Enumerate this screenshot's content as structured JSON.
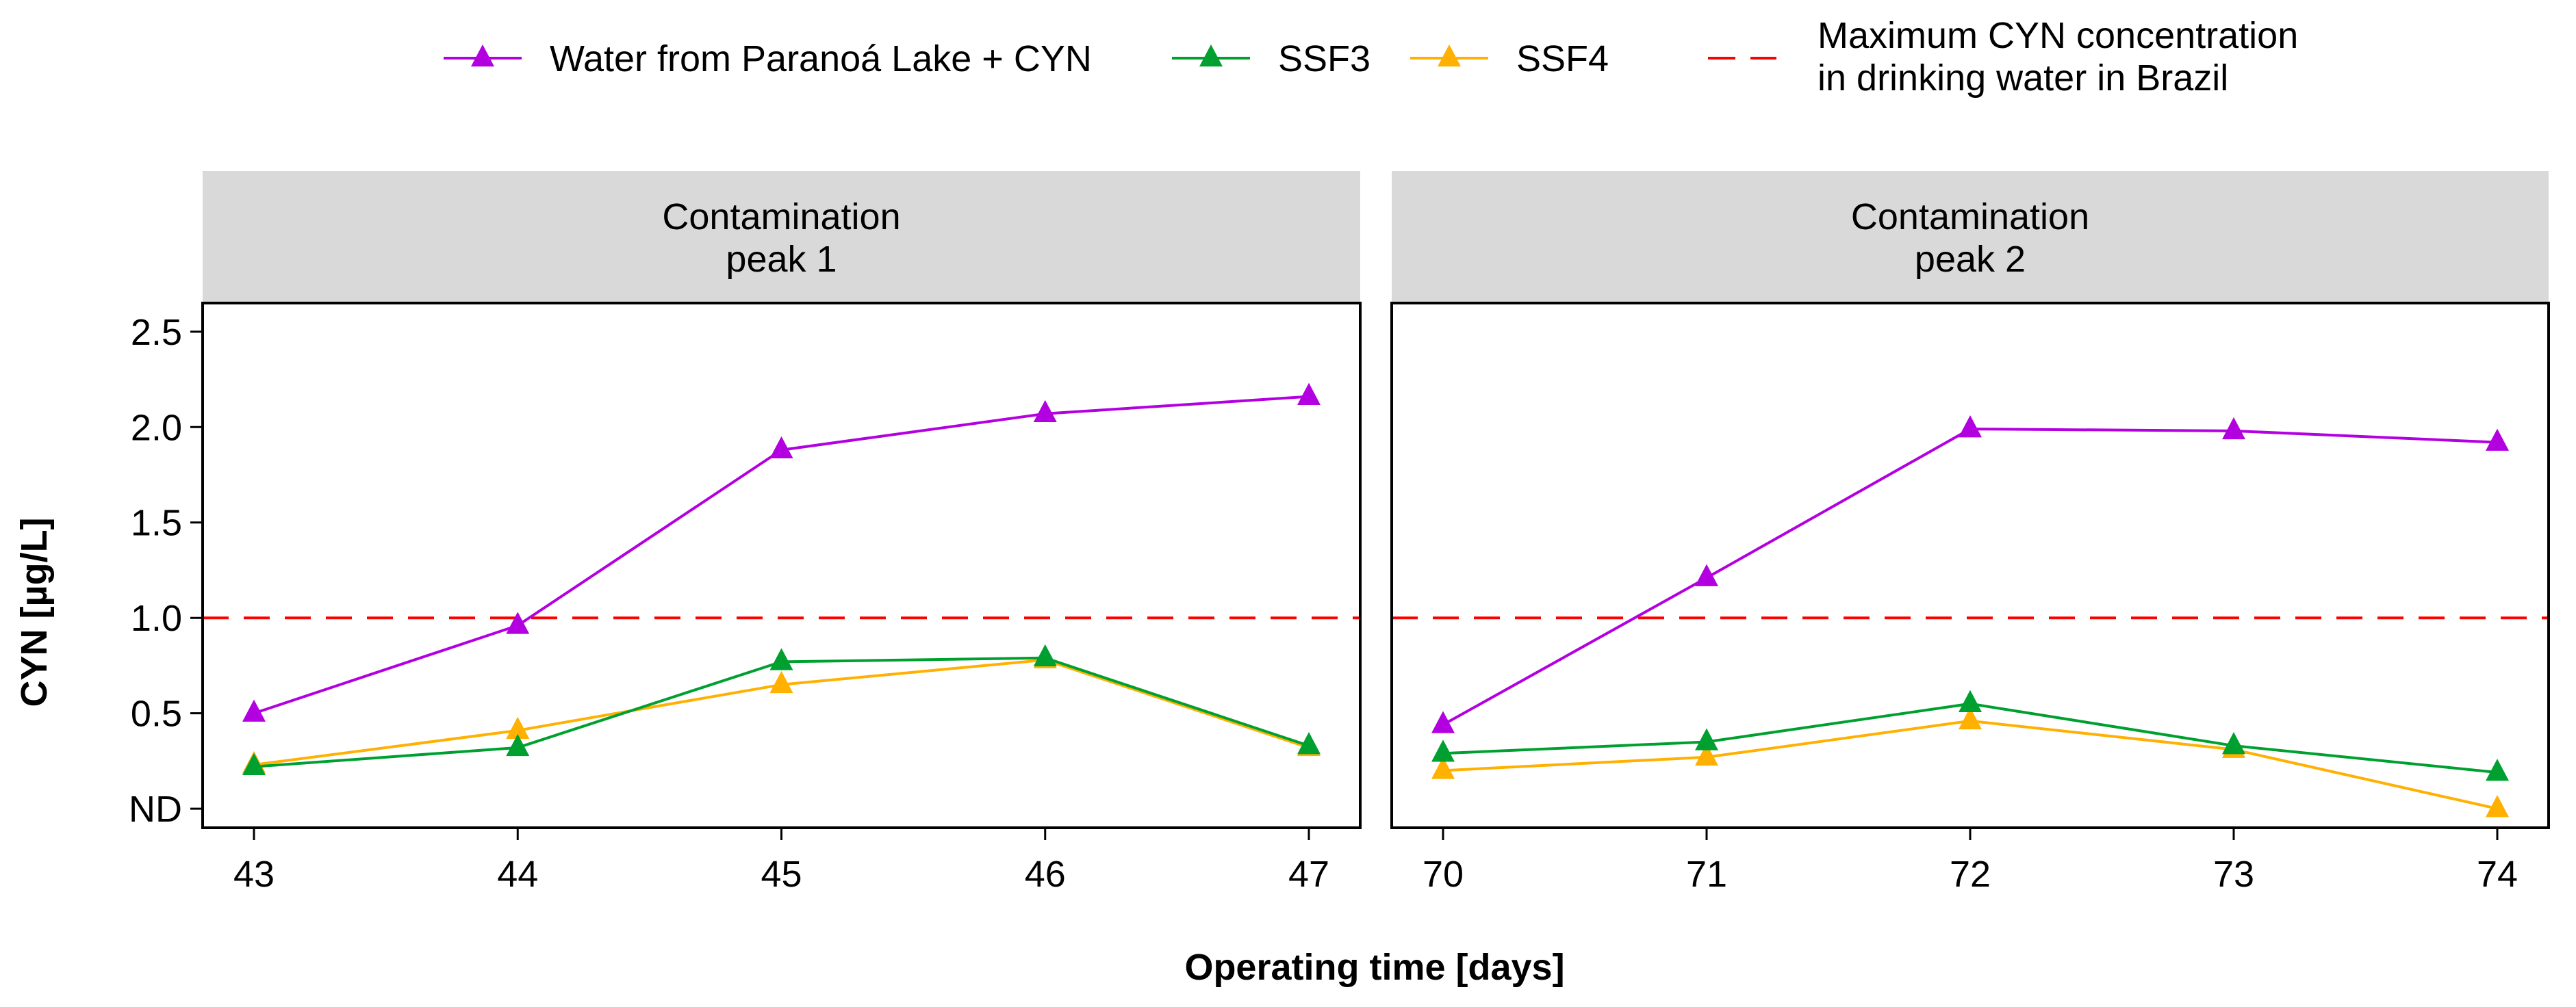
{
  "chart_data": {
    "type": "line",
    "title": "",
    "xlabel": "Operating time [days]",
    "ylabel": "CYN [µg/L]",
    "ylim": [
      -0.1,
      2.65
    ],
    "y_ticks": [
      0,
      0.5,
      1.0,
      1.5,
      2.0,
      2.5
    ],
    "y_tick_labels": [
      "ND",
      "0.5",
      "1.0",
      "1.5",
      "2.0",
      "2.5"
    ],
    "legend": {
      "position": "top",
      "entries": [
        {
          "name": "Water from Paranoá Lake + CYN",
          "color": "#B300E0",
          "marker": "triangle"
        },
        {
          "name": "SSF3",
          "color": "#00A030",
          "marker": "triangle"
        },
        {
          "name": "SSF4",
          "color": "#FFB000",
          "marker": "triangle"
        },
        {
          "name_lines": [
            "Maximum CYN concentration",
            "in drinking water in Brazil"
          ],
          "color": "#FF0000",
          "style": "dashed"
        }
      ]
    },
    "reference_line": {
      "y": 1.0,
      "color": "#FF0000",
      "style": "dashed"
    },
    "panels": [
      {
        "strip_lines": [
          "Contamination",
          "peak 1"
        ],
        "x": [
          43,
          44,
          45,
          46,
          47
        ],
        "x_tick_labels": [
          "43",
          "44",
          "45",
          "46",
          "47"
        ],
        "series": [
          {
            "name": "Water from Paranoá Lake + CYN",
            "color": "#B300E0",
            "values": [
              0.5,
              0.96,
              1.88,
              2.07,
              2.16
            ]
          },
          {
            "name": "SSF4",
            "color": "#FFB000",
            "values": [
              0.23,
              0.41,
              0.65,
              0.78,
              0.32
            ]
          },
          {
            "name": "SSF3",
            "color": "#00A030",
            "values": [
              0.22,
              0.32,
              0.77,
              0.79,
              0.33
            ]
          }
        ]
      },
      {
        "strip_lines": [
          "Contamination",
          "peak 2"
        ],
        "x": [
          70,
          71,
          72,
          73,
          74
        ],
        "x_tick_labels": [
          "70",
          "71",
          "72",
          "73",
          "74"
        ],
        "series": [
          {
            "name": "Water from Paranoá Lake + CYN",
            "color": "#B300E0",
            "values": [
              0.44,
              1.21,
              1.99,
              1.98,
              1.92
            ]
          },
          {
            "name": "SSF4",
            "color": "#FFB000",
            "values": [
              0.2,
              0.27,
              0.46,
              0.31,
              0.0
            ]
          },
          {
            "name": "SSF3",
            "color": "#00A030",
            "values": [
              0.29,
              0.35,
              0.55,
              0.33,
              0.19
            ]
          }
        ]
      }
    ]
  }
}
